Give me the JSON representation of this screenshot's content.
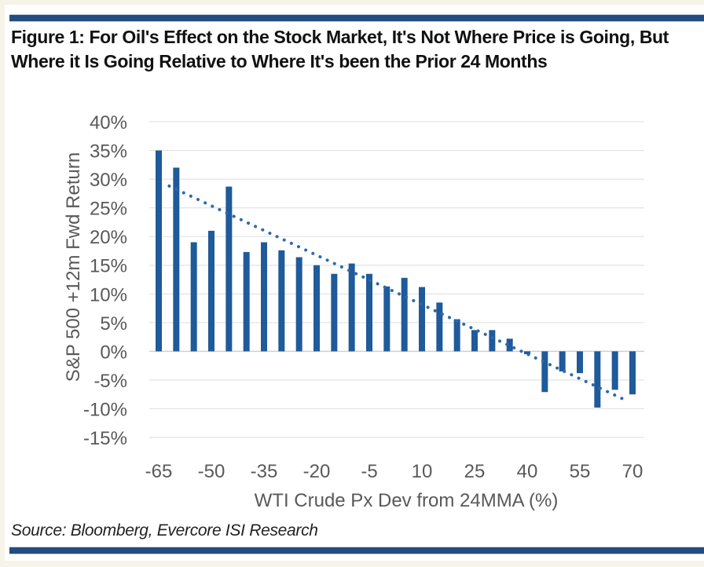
{
  "figure": {
    "title": "Figure 1: For Oil's Effect on the Stock Market, It's Not Where Price is Going, But Where it Is Going Relative to Where It's been the Prior 24 Months",
    "source": "Source: Bloomberg, Evercore ISI Research"
  },
  "colors": {
    "bar": "#1f5a9a",
    "trend": "#2e6aa6",
    "rule": "#234d82",
    "grid": "#e3e3e3",
    "text": "#595959"
  },
  "chart_data": {
    "type": "bar",
    "title": "Figure 1: For Oil's Effect on the Stock Market, It's Not Where Price is Going, But Where it Is Going Relative to Where It's been the Prior 24 Months",
    "xlabel": "WTI Crude Px Dev from 24MMA (%)",
    "ylabel": "S&P 500 +12m Fwd Return",
    "x": [
      -65,
      -60,
      -55,
      -50,
      -45,
      -40,
      -35,
      -30,
      -25,
      -20,
      -15,
      -10,
      -5,
      0,
      5,
      10,
      15,
      20,
      25,
      30,
      35,
      40,
      45,
      50,
      55,
      60,
      65,
      70
    ],
    "values": [
      35.0,
      32.0,
      19.0,
      21.0,
      28.7,
      17.3,
      19.0,
      17.6,
      16.4,
      15.0,
      13.5,
      15.3,
      13.5,
      11.3,
      12.8,
      11.2,
      8.5,
      5.6,
      3.7,
      3.7,
      2.2,
      -0.5,
      -7.1,
      -3.5,
      -3.8,
      -9.8,
      -6.7,
      -7.5
    ],
    "value_unit": "%",
    "x_tick_labels": [
      "-65",
      "-50",
      "-35",
      "-20",
      "-5",
      "10",
      "25",
      "40",
      "55",
      "70"
    ],
    "y_tick_labels": [
      "40%",
      "35%",
      "30%",
      "25%",
      "20%",
      "15%",
      "10%",
      "5%",
      "0%",
      "-5%",
      "-10%",
      "-15%"
    ],
    "y_ticks": [
      40,
      35,
      30,
      25,
      20,
      15,
      10,
      5,
      0,
      -5,
      -10,
      -15
    ],
    "ylim": [
      -15,
      40
    ],
    "xlim": [
      -65,
      70
    ],
    "grid": true,
    "legend": "none",
    "trendline": {
      "type": "linear",
      "style": "dotted",
      "x": [
        -62,
        68
      ],
      "y": [
        28.8,
        -8.5
      ]
    }
  }
}
